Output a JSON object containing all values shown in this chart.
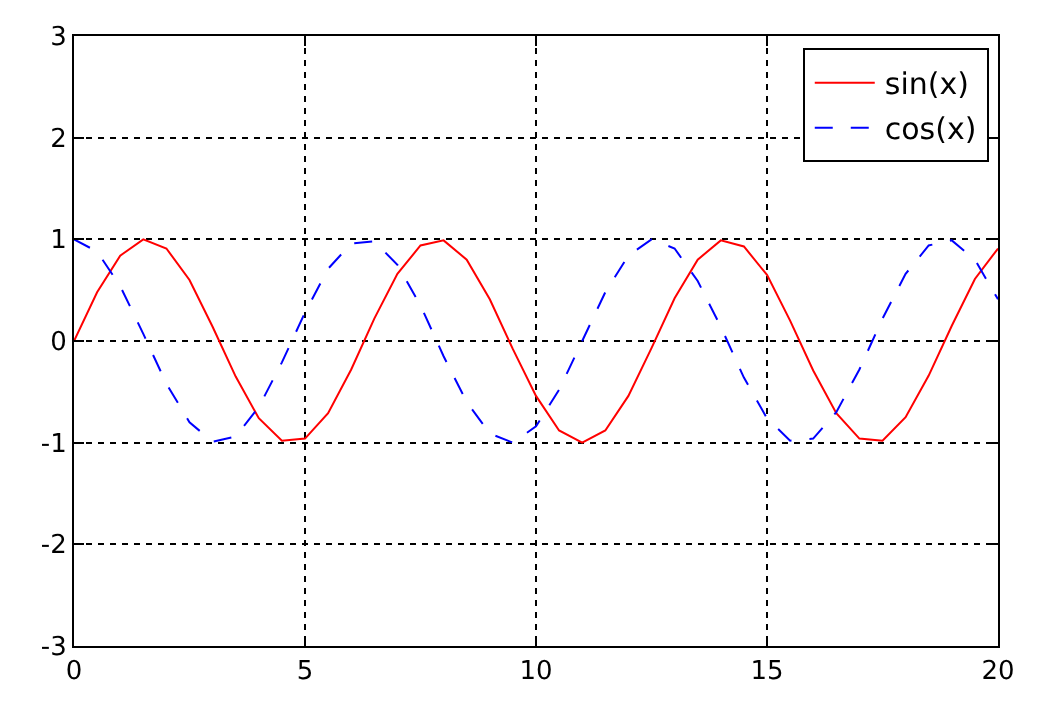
{
  "chart_data": {
    "type": "line",
    "x": [
      0,
      0.5,
      1,
      1.5,
      2,
      2.5,
      3,
      3.5,
      4,
      4.5,
      5,
      5.5,
      6,
      6.5,
      7,
      7.5,
      8,
      8.5,
      9,
      9.5,
      10,
      10.5,
      11,
      11.5,
      12,
      12.5,
      13,
      13.5,
      14,
      14.5,
      15,
      15.5,
      16,
      16.5,
      17,
      17.5,
      18,
      18.5,
      19,
      19.5,
      20
    ],
    "series": [
      {
        "name": "sin(x)",
        "color": "#ff0000",
        "line_style": "solid",
        "values": [
          0,
          0.48,
          0.84,
          1.0,
          0.91,
          0.6,
          0.14,
          -0.35,
          -0.76,
          -0.98,
          -0.96,
          -0.71,
          -0.28,
          0.22,
          0.66,
          0.94,
          0.99,
          0.8,
          0.41,
          -0.08,
          -0.54,
          -0.88,
          -1.0,
          -0.88,
          -0.54,
          -0.07,
          0.42,
          0.8,
          0.99,
          0.93,
          0.65,
          0.2,
          -0.29,
          -0.71,
          -0.96,
          -0.98,
          -0.75,
          -0.34,
          0.15,
          0.61,
          0.91
        ]
      },
      {
        "name": "cos(x)",
        "color": "#0000ff",
        "line_style": "dashed",
        "values": [
          1,
          0.88,
          0.54,
          0.07,
          -0.42,
          -0.8,
          -0.99,
          -0.94,
          -0.65,
          -0.21,
          0.28,
          0.71,
          0.96,
          0.98,
          0.75,
          0.35,
          -0.15,
          -0.6,
          -0.91,
          -1.0,
          -0.84,
          -0.48,
          0.0,
          0.48,
          0.84,
          1.0,
          0.91,
          0.59,
          0.14,
          -0.36,
          -0.76,
          -0.98,
          -0.96,
          -0.7,
          -0.28,
          0.22,
          0.66,
          0.94,
          0.99,
          0.8,
          0.41
        ]
      }
    ],
    "xlim": [
      0,
      20
    ],
    "xticks": [
      0,
      5,
      10,
      15,
      20
    ],
    "ylim": [
      -3,
      3
    ],
    "yticks": [
      -3,
      -2,
      -1,
      0,
      1,
      2,
      3
    ],
    "grid": true,
    "legend": "top right",
    "marker": "none"
  }
}
